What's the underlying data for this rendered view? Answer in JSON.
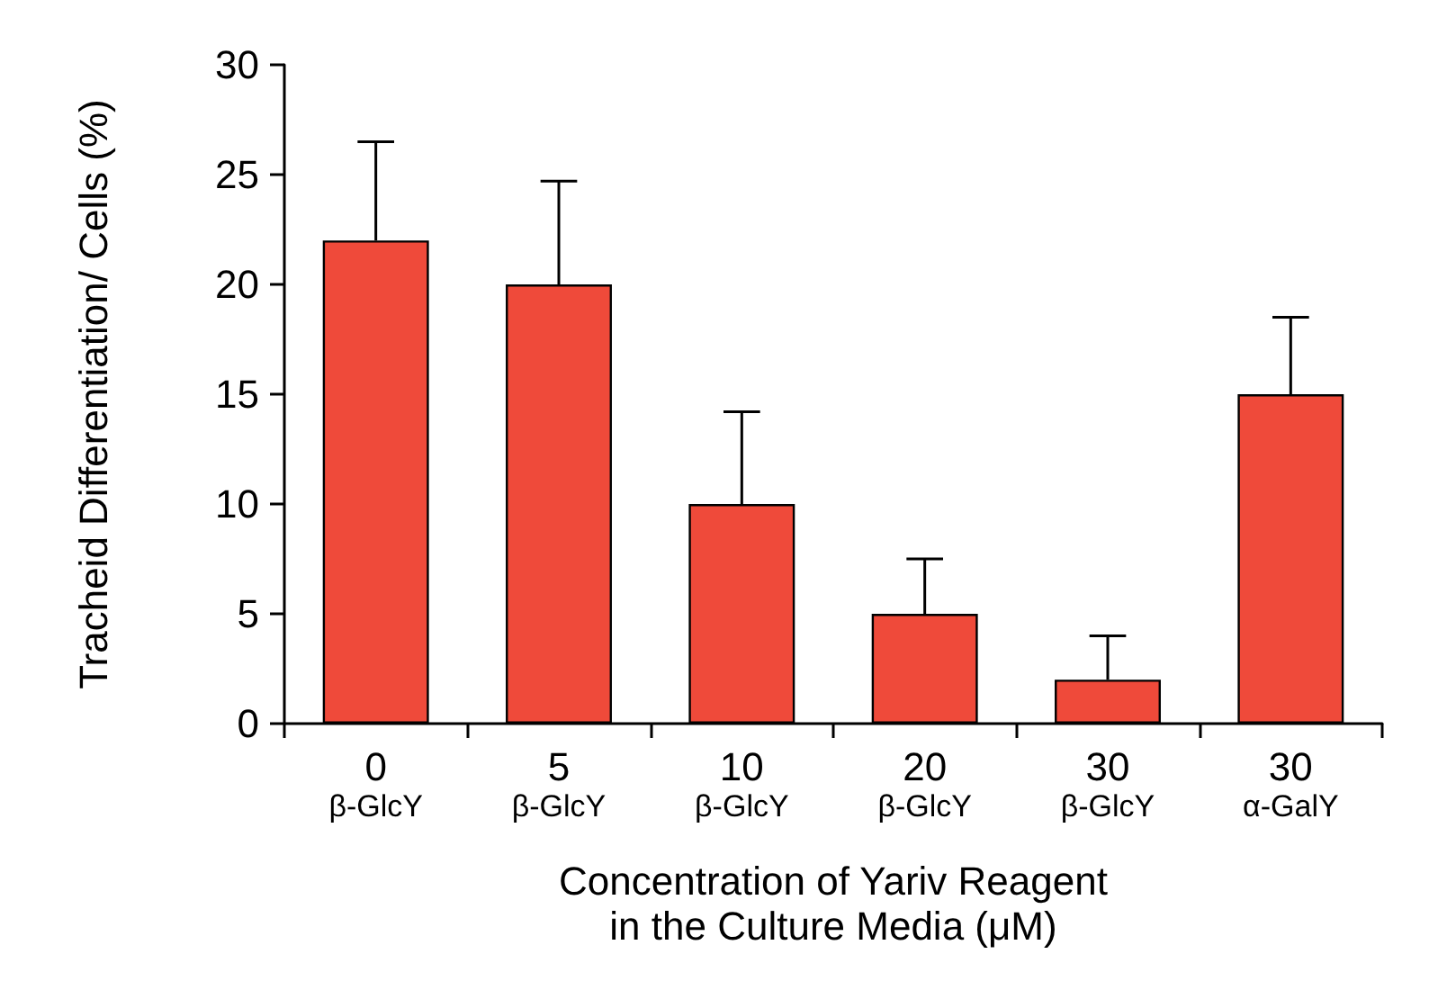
{
  "chart_data": {
    "type": "bar",
    "xlabel": "Concentration of Yariv Reagent\nin the Culture Media (μM)",
    "ylabel": "Tracheid Differentiation/ Cells (%)",
    "categories": [
      "0\nβ-GlcY",
      "5\nβ-GlcY",
      "10\nβ-GlcY",
      "20\nβ-GlcY",
      "30\nβ-GlcY",
      "30\nα-GalY"
    ],
    "values": [
      22,
      20,
      10,
      5,
      2,
      15
    ],
    "color": "#ef4a3a",
    "errors": [
      [
        22,
        26.5
      ],
      [
        20,
        24.7
      ],
      [
        10,
        14.2
      ],
      [
        5,
        7.5
      ],
      [
        2,
        4
      ],
      [
        15,
        18.5
      ]
    ],
    "ylim": [
      0,
      30
    ],
    "yticks": [
      0,
      5,
      10,
      15,
      20,
      25,
      30
    ],
    "grid": false
  }
}
